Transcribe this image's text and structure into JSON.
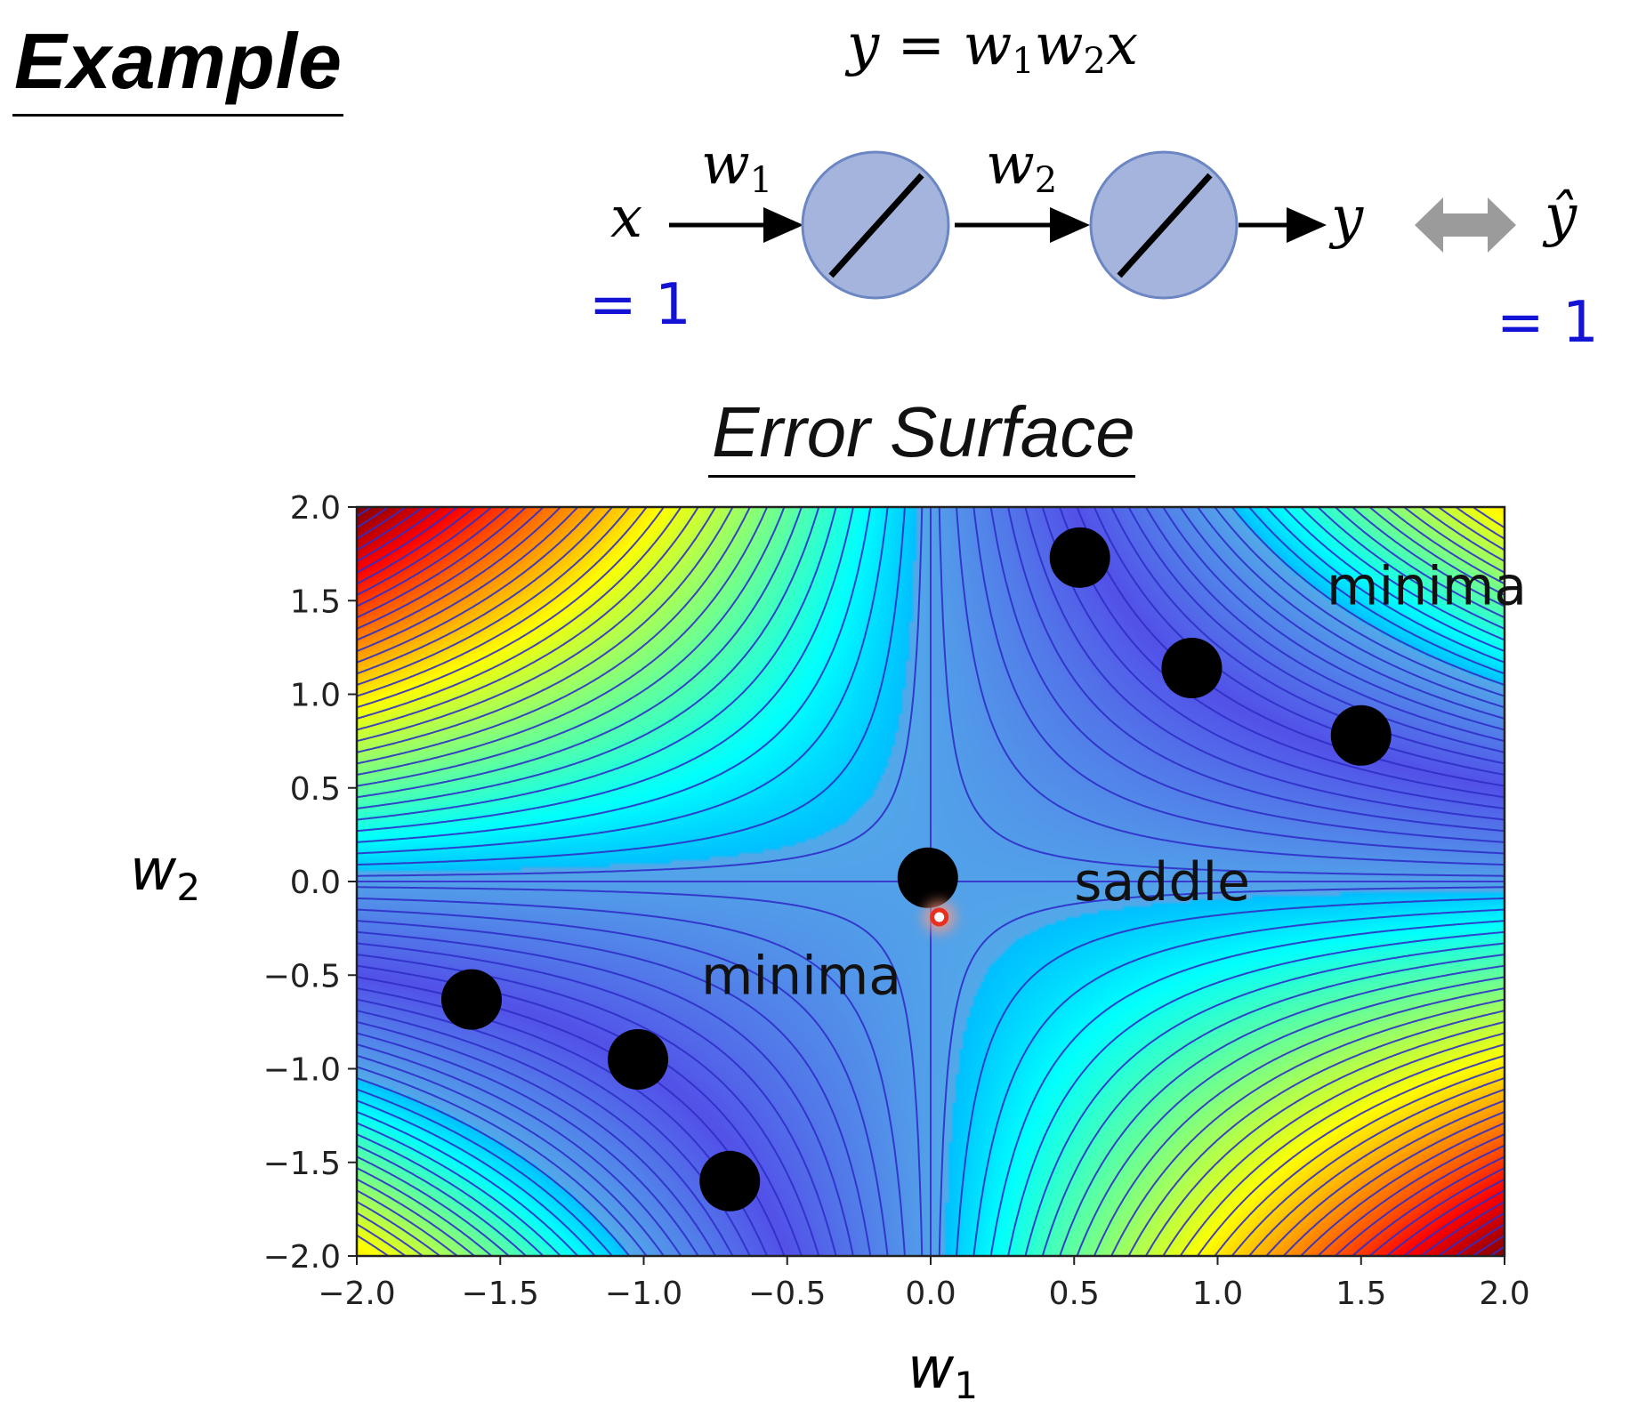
{
  "slide": {
    "heading": "Example",
    "equation": {
      "lhs": "y",
      "eq": "=",
      "w1": "w",
      "w1_sub": "1",
      "w2": "w",
      "w2_sub": "2",
      "x": "x"
    },
    "network": {
      "input_symbol": "x",
      "input_value": "= 1",
      "weight1": {
        "base": "w",
        "sub": "1"
      },
      "weight2": {
        "base": "w",
        "sub": "2"
      },
      "output_symbol": "y",
      "target_symbol": "ŷ",
      "target_value": "= 1",
      "neuron_color": "#a4b4dc",
      "neuron_border": "#6c86c4",
      "arrow_color": "#9b9b9b"
    },
    "subtitle": "Error Surface"
  },
  "chart_data": {
    "type": "heatmap",
    "title": "Error Surface",
    "function": "(1 - w1*w2)^2",
    "xlabel": {
      "base": "w",
      "sub": "1"
    },
    "ylabel": {
      "base": "w",
      "sub": "2"
    },
    "xlim": [
      -2.0,
      2.0
    ],
    "ylim": [
      -2.0,
      2.0
    ],
    "xticks": [
      "−2.0",
      "−1.5",
      "−1.0",
      "−0.5",
      "0.0",
      "0.5",
      "1.0",
      "1.5",
      "2.0"
    ],
    "yticks": [
      "2.0",
      "1.5",
      "1.0",
      "0.5",
      "0.0",
      "−0.5",
      "−1.0",
      "−1.5",
      "−2.0"
    ],
    "colormap": "jet",
    "points": [
      {
        "w1": 0.52,
        "w2": 1.73,
        "group": "minima"
      },
      {
        "w1": 0.91,
        "w2": 1.14,
        "group": "minima"
      },
      {
        "w1": 1.5,
        "w2": 0.78,
        "group": "minima"
      },
      {
        "w1": -1.6,
        "w2": -0.63,
        "group": "minima"
      },
      {
        "w1": -1.02,
        "w2": -0.95,
        "group": "minima"
      },
      {
        "w1": -0.7,
        "w2": -1.6,
        "group": "minima"
      },
      {
        "w1": -0.01,
        "w2": 0.02,
        "group": "saddle"
      }
    ],
    "start_point": {
      "w1": 0.03,
      "w2": -0.19
    },
    "annotations": [
      {
        "text": "minima",
        "w1": 1.38,
        "w2": 1.48
      },
      {
        "text": "minima",
        "w1": -0.8,
        "w2": -0.6
      },
      {
        "text": "saddle",
        "w1": 0.5,
        "w2": -0.1
      }
    ],
    "point_color": "#000000",
    "start_color": "#e8301e"
  }
}
